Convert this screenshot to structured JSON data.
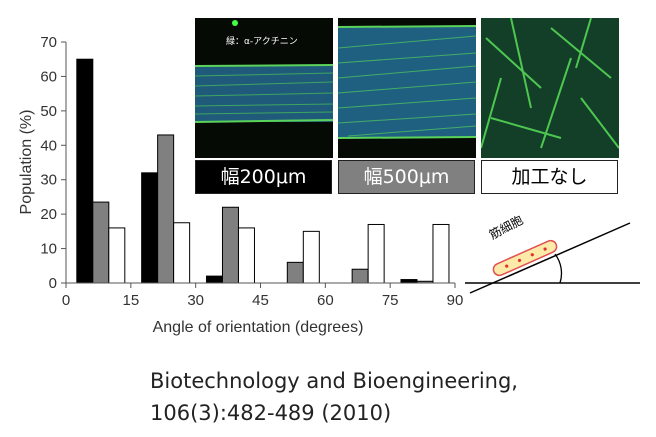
{
  "chart_data": {
    "type": "bar",
    "categories": [
      "0-15",
      "15-30",
      "30-45",
      "45-60",
      "60-75",
      "75-90"
    ],
    "series": [
      {
        "name": "幅200μm",
        "color": "#000000",
        "values": [
          65,
          32,
          2,
          0,
          0,
          1
        ]
      },
      {
        "name": "幅500μm",
        "color": "#808080",
        "values": [
          23.5,
          43,
          22,
          6,
          4,
          0.5
        ]
      },
      {
        "name": "加工なし",
        "color": "#ffffff",
        "values": [
          16,
          17.5,
          16,
          15,
          17,
          17
        ]
      }
    ],
    "xticks": [
      "0",
      "15",
      "30",
      "45",
      "60",
      "75",
      "90"
    ],
    "yticks": [
      "0",
      "10",
      "20",
      "30",
      "40",
      "50",
      "60",
      "70"
    ],
    "xlim": [
      0,
      90
    ],
    "ylim": [
      0,
      70
    ],
    "xlabel": "Angle of orientation (degrees)",
    "ylabel": "Population (%)",
    "grid": false
  },
  "panels": {
    "label_200": "幅200μm",
    "label_500": "幅500μm",
    "label_none": "加工なし",
    "micro_caption": "緑：α-アクチニン"
  },
  "diagram": {
    "cell_label": "筋細胞"
  },
  "citation": {
    "line1": "Biotechnology and Bioengineering,",
    "line2": "106(3):482-489   (2010)"
  }
}
